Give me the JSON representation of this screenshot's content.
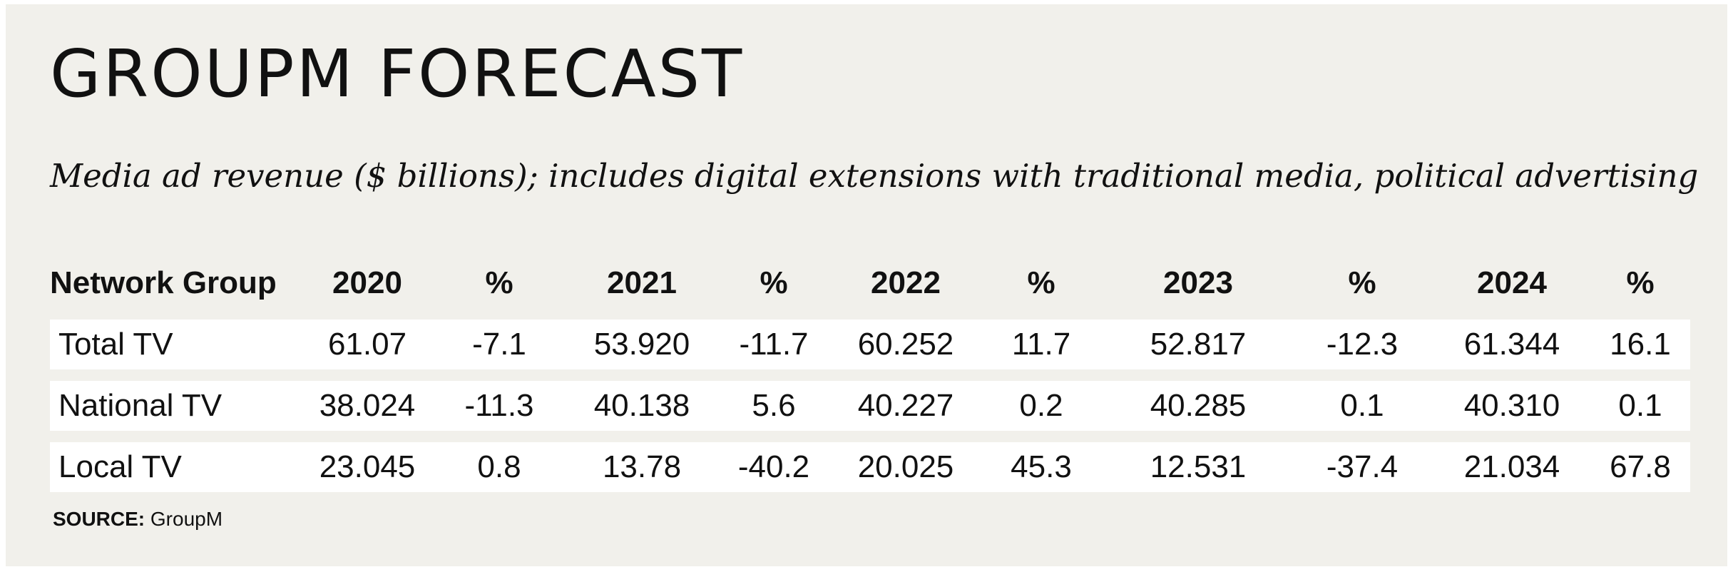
{
  "title": "GROUPM FORECAST",
  "subtitle": "Media ad revenue ($ billions); includes digital extensions with traditional media, political advertising",
  "source_label": "SOURCE:",
  "source_value": "GroupM",
  "chart_data": {
    "type": "table",
    "columns": [
      "Network Group",
      "2020",
      "%",
      "2021",
      "%",
      "2022",
      "%",
      "2023",
      "%",
      "2024",
      "%"
    ],
    "rows": [
      [
        "Total TV",
        "61.07",
        "-7.1",
        "53.920",
        "-11.7",
        "60.252",
        "11.7",
        "52.817",
        "-12.3",
        "61.344",
        "16.1"
      ],
      [
        "National TV",
        "38.024",
        "-11.3",
        "40.138",
        "5.6",
        "40.227",
        "0.2",
        "40.285",
        "0.1",
        "40.310",
        "0.1"
      ],
      [
        "Local TV",
        "23.045",
        "0.8",
        "13.78",
        "-40.2",
        "20.025",
        "45.3",
        "12.531",
        "-37.4",
        "21.034",
        "67.8"
      ]
    ]
  }
}
